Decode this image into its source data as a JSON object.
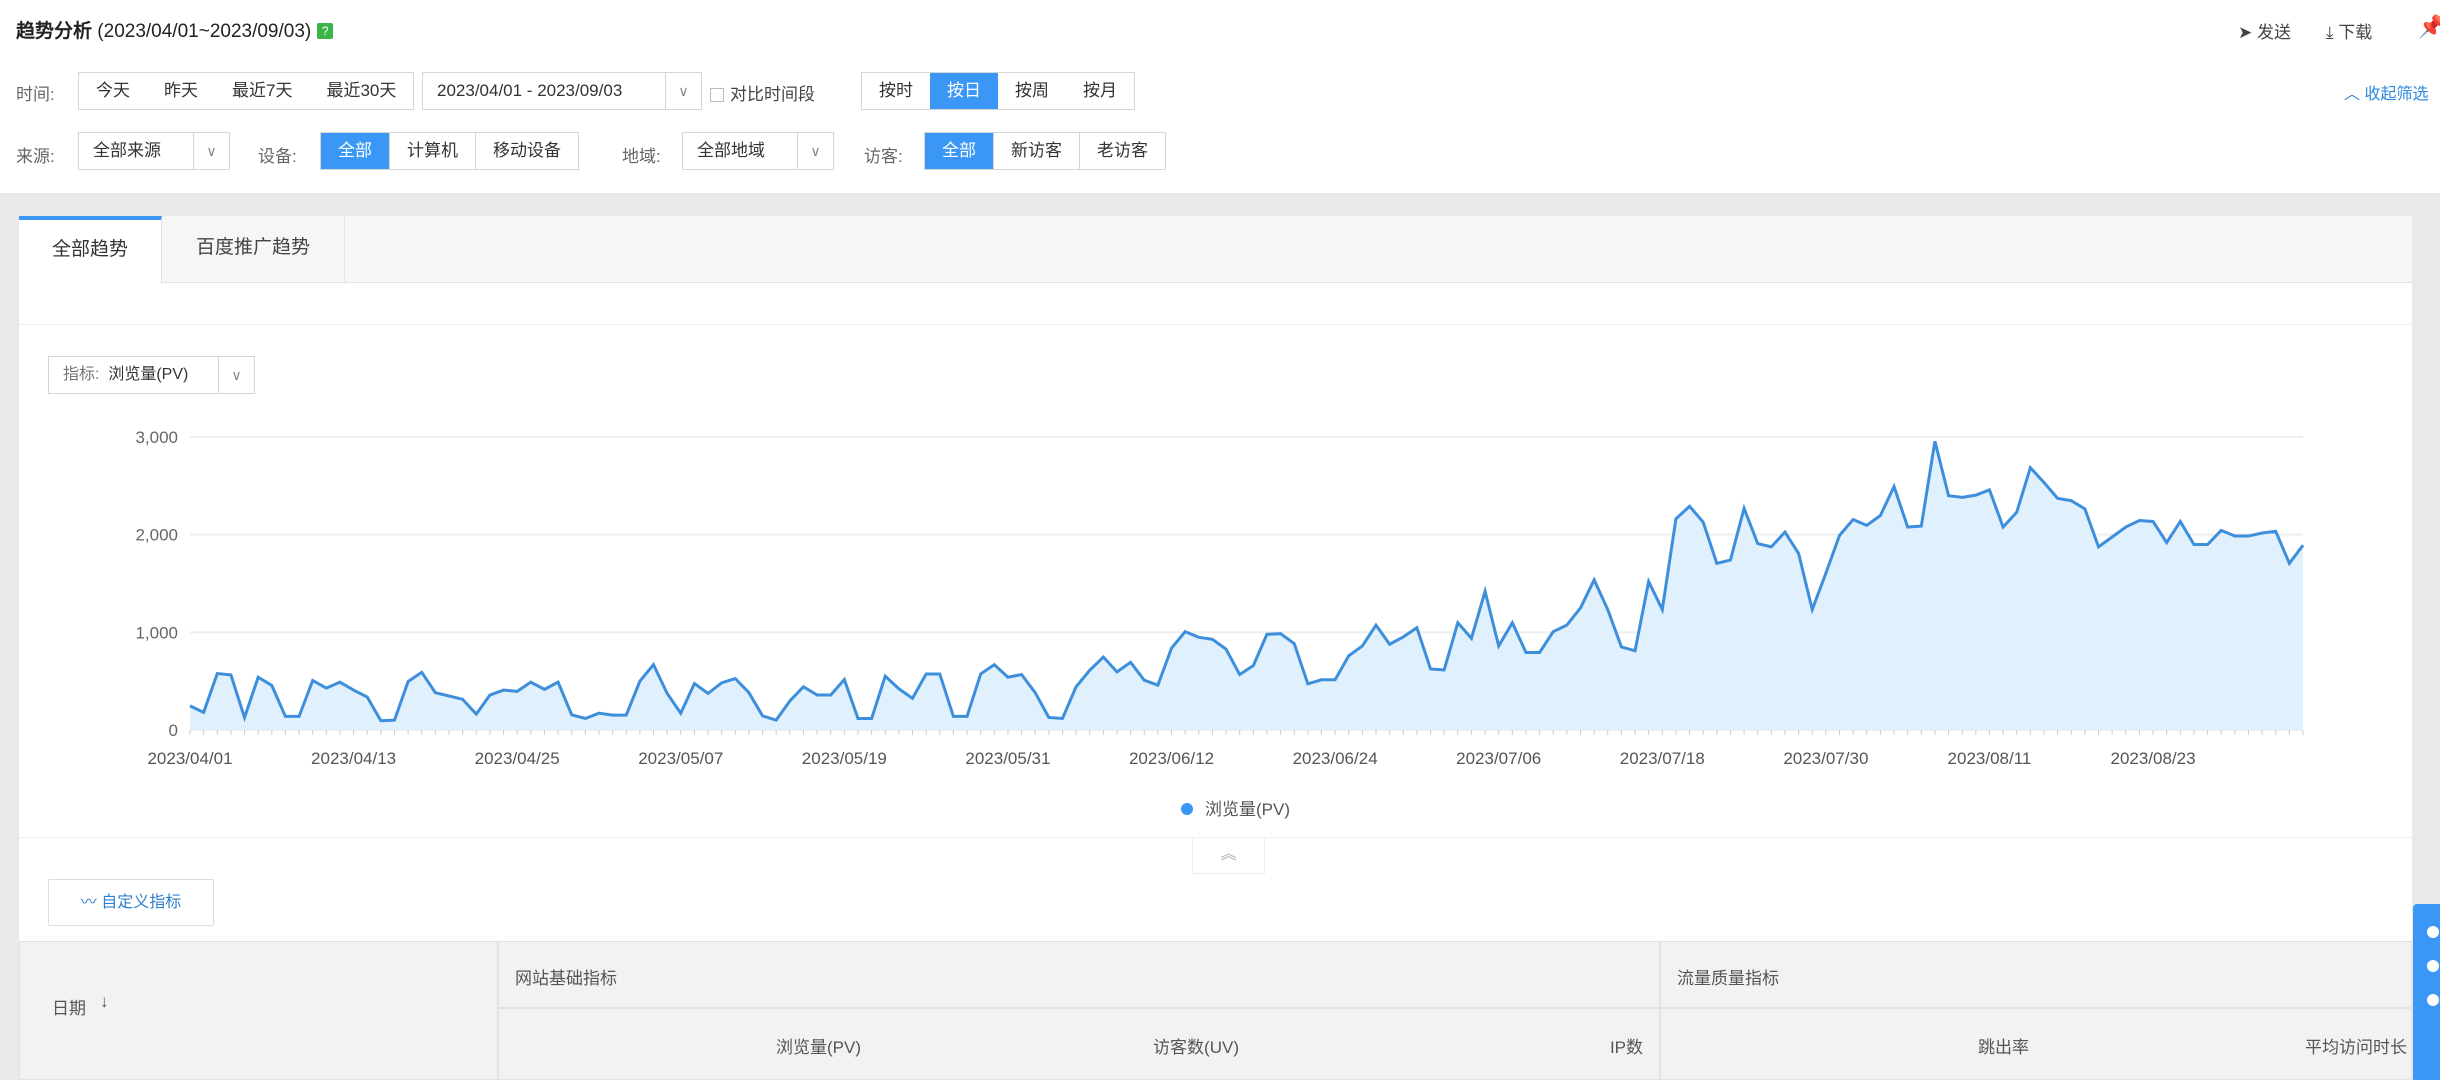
{
  "header": {
    "title": "趋势分析",
    "date_range": "(2023/04/01~2023/09/03)",
    "help_icon": "?",
    "send": "发送",
    "download": "下载",
    "collapse_filter": "收起筛选"
  },
  "filters": {
    "time_label": "时间:",
    "quick": [
      "今天",
      "昨天",
      "最近7天",
      "最近30天"
    ],
    "date_value": "2023/04/01 - 2023/09/03",
    "compare_label": "对比时间段",
    "granularity": [
      "按时",
      "按日",
      "按周",
      "按月"
    ],
    "granularity_selected": "按日",
    "source_label": "来源:",
    "source_value": "全部来源",
    "device_label": "设备:",
    "devices": [
      "全部",
      "计算机",
      "移动设备"
    ],
    "region_label": "地域:",
    "region_value": "全部地域",
    "visitor_label": "访客:",
    "visitors": [
      "全部",
      "新访客",
      "老访客"
    ]
  },
  "tabs": [
    "全部趋势",
    "百度推广趋势"
  ],
  "metric": {
    "label": "指标:",
    "value": "浏览量(PV)"
  },
  "custom_metric_button": "自定义指标",
  "table": {
    "date_header": "日期",
    "group1": "网站基础指标",
    "group2": "流量质量指标",
    "columns": [
      "浏览量(PV)",
      "访客数(UV)",
      "IP数",
      "跳出率",
      "平均访问时长"
    ]
  },
  "colors": {
    "accent": "#3a97f5",
    "line": "#3d8fdc",
    "fill": "#e1f0fd"
  },
  "chart_data": {
    "type": "area",
    "x_start": "2023/04/01",
    "x_end": "2023/09/03",
    "x_tick_labels": [
      "2023/04/01",
      "2023/04/13",
      "2023/04/25",
      "2023/05/07",
      "2023/05/19",
      "2023/05/31",
      "2023/06/12",
      "2023/06/24",
      "2023/07/06",
      "2023/07/18",
      "2023/07/30",
      "2023/08/11",
      "2023/08/23"
    ],
    "y_tick_labels": [
      "0",
      "1,000",
      "2,000",
      "3,000"
    ],
    "ylim": [
      0,
      3000
    ],
    "grid": true,
    "legend": "bottom",
    "series": [
      {
        "name": "浏览量(PV)",
        "values": [
          247,
          180,
          578,
          564,
          128,
          540,
          456,
          139,
          139,
          507,
          429,
          490,
          409,
          338,
          95,
          101,
          497,
          591,
          382,
          348,
          314,
          162,
          358,
          409,
          395,
          490,
          416,
          490,
          155,
          118,
          172,
          152,
          152,
          500,
          669,
          375,
          172,
          476,
          375,
          483,
          527,
          382,
          145,
          101,
          297,
          443,
          358,
          358,
          517,
          118,
          118,
          551,
          422,
          324,
          574,
          574,
          139,
          139,
          574,
          669,
          540,
          568,
          382,
          128,
          118,
          443,
          611,
          747,
          595,
          693,
          510,
          459,
          838,
          1007,
          949,
          929,
          828,
          568,
          659,
          980,
          986,
          885,
          473,
          514,
          514,
          760,
          861,
          1074,
          878,
          953,
          1047,
          625,
          615,
          1098,
          939,
          1419,
          861,
          1098,
          794,
          794,
          1007,
          1074,
          1250,
          1537,
          1233,
          851,
          811,
          1520,
          1233,
          2162,
          2291,
          2128,
          1706,
          1740,
          2270,
          1909,
          1875,
          2027,
          1807,
          1233,
          1605,
          1993,
          2155,
          2095,
          2196,
          2493,
          2078,
          2088,
          2956,
          2399,
          2382,
          2405,
          2459,
          2078,
          2230,
          2686,
          2534,
          2372,
          2348,
          2264,
          1875,
          1976,
          2078,
          2145,
          2135,
          1919,
          2135,
          1899,
          1899,
          2044,
          1986,
          1986,
          2017,
          2034,
          1706,
          1892
        ]
      }
    ]
  }
}
